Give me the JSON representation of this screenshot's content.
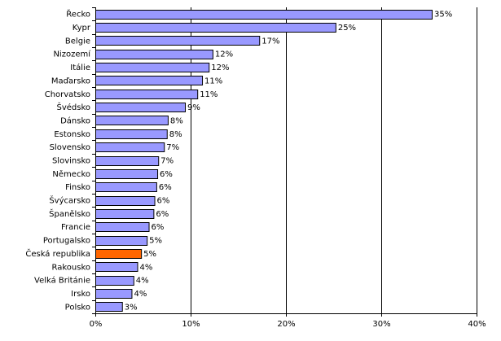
{
  "chart_data": {
    "type": "bar",
    "orientation": "horizontal",
    "categories": [
      "Řecko",
      "Kypr",
      "Belgie",
      "Nizozemí",
      "Itálie",
      "Maďarsko",
      "Chorvatsko",
      "Švédsko",
      "Dánsko",
      "Estonsko",
      "Slovensko",
      "Slovinsko",
      "Německo",
      "Finsko",
      "Švýcarsko",
      "Španělsko",
      "Francie",
      "Portugalsko",
      "Česká republika",
      "Rakousko",
      "Velká Británie",
      "Irsko",
      "Polsko"
    ],
    "values": [
      35.3,
      25.2,
      17.2,
      12.3,
      11.9,
      11.2,
      10.7,
      9.4,
      7.6,
      7.5,
      7.2,
      6.6,
      6.5,
      6.4,
      6.2,
      6.1,
      5.6,
      5.4,
      4.8,
      4.4,
      4.0,
      3.8,
      2.8
    ],
    "value_labels": [
      "35%",
      "25%",
      "17%",
      "12%",
      "12%",
      "11%",
      "11%",
      "9%",
      "8%",
      "8%",
      "7%",
      "7%",
      "6%",
      "6%",
      "6%",
      "6%",
      "6%",
      "5%",
      "5%",
      "4%",
      "4%",
      "4%",
      "3%"
    ],
    "highlight_category": "Česká republika",
    "xlim": [
      0,
      40
    ],
    "xticks": [
      0,
      10,
      20,
      30,
      40
    ],
    "xtick_labels": [
      "0%",
      "10%",
      "20%",
      "30%",
      "40%"
    ],
    "grid": "vertical",
    "legend": "none",
    "colors": {
      "bar": "#9999ff",
      "highlight": "#ff6600",
      "bar_stroke": "#000000",
      "grid": "#000000"
    }
  }
}
